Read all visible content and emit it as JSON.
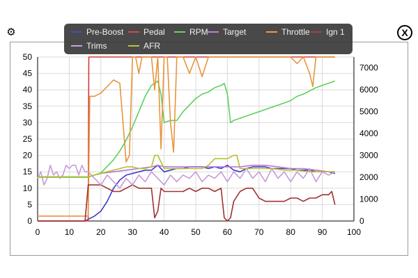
{
  "controls": {
    "settings_icon": "gear-icon",
    "settings_glyph": "⚙",
    "close_icon": "close-icon",
    "close_glyph": "X"
  },
  "chart_data": {
    "type": "line",
    "title": "",
    "xlabel": "",
    "ylabel": "",
    "xlim": [
      0,
      100
    ],
    "ylim_left": [
      0,
      50
    ],
    "ylim_right": [
      0,
      7500
    ],
    "x_ticks": [
      "0",
      "10",
      "20",
      "30",
      "40",
      "50",
      "60",
      "70",
      "80",
      "90",
      "100"
    ],
    "y_left_ticks": [
      "0",
      "5",
      "10",
      "15",
      "20",
      "25",
      "30",
      "35",
      "40",
      "45",
      "50"
    ],
    "y_right_ticks": [
      "0",
      "1000",
      "2000",
      "3000",
      "4000",
      "5000",
      "6000",
      "7000"
    ],
    "grid": true,
    "legend_position": "top-center",
    "series": [
      {
        "name": "Pre-Boost",
        "color": "#3b3bc4",
        "axis": "left",
        "x": [
          0,
          15,
          16,
          18,
          20,
          22,
          24,
          26,
          28,
          30,
          32,
          34,
          36,
          38,
          40,
          42,
          44,
          46,
          48,
          50,
          52,
          54,
          56,
          58,
          60,
          62,
          64,
          66,
          68,
          70,
          72,
          74,
          76,
          78,
          80,
          82,
          84,
          86,
          88,
          90,
          92,
          94
        ],
        "y": [
          0,
          0,
          0.5,
          1.5,
          3,
          6,
          10,
          12.5,
          14,
          14.5,
          15,
          15.5,
          15.5,
          17,
          15,
          15.5,
          16,
          16,
          16.5,
          16.5,
          16.5,
          16,
          16.5,
          16,
          17,
          15.5,
          15,
          16,
          16.5,
          16.5,
          16.5,
          16,
          16,
          16,
          16,
          15.5,
          15.5,
          15.5,
          15,
          15,
          15,
          14.5
        ]
      },
      {
        "name": "Pedal",
        "color": "#d23a3a",
        "axis": "left",
        "x": [
          0,
          16,
          16.2,
          17,
          94
        ],
        "y": [
          0,
          0,
          50,
          50,
          50
        ]
      },
      {
        "name": "RPM",
        "color": "#5ad15a",
        "axis": "right",
        "x": [
          0,
          16,
          18,
          20,
          22,
          24,
          26,
          28,
          30,
          32,
          34,
          36,
          38,
          39,
          40,
          42,
          44,
          46,
          48,
          50,
          52,
          54,
          56,
          58,
          59,
          60,
          61,
          62,
          64,
          66,
          68,
          70,
          72,
          74,
          76,
          78,
          80,
          82,
          84,
          86,
          88,
          90,
          92,
          94
        ],
        "y": [
          2000,
          2000,
          2100,
          2200,
          2500,
          2800,
          3200,
          3700,
          4300,
          5000,
          5700,
          6200,
          6400,
          5800,
          4500,
          4600,
          4600,
          5000,
          5300,
          5600,
          5800,
          5900,
          6100,
          6200,
          6300,
          5800,
          4500,
          4600,
          4700,
          4800,
          4900,
          5000,
          5100,
          5200,
          5300,
          5400,
          5500,
          5700,
          5800,
          5950,
          6100,
          6200,
          6300,
          6400
        ]
      },
      {
        "name": "Target",
        "color": "#b774d8",
        "axis": "left",
        "x": [
          0,
          16,
          18,
          20,
          24,
          28,
          32,
          36,
          38,
          40,
          44,
          48,
          52,
          56,
          60,
          64,
          68,
          72,
          76,
          80,
          84,
          88,
          92,
          94
        ],
        "y": [
          13.5,
          13.5,
          14,
          14.5,
          15,
          15.5,
          16,
          16.5,
          17,
          16.5,
          16.5,
          16.5,
          16.5,
          16.5,
          16.5,
          16.5,
          17,
          17,
          16.5,
          16,
          16,
          15.5,
          15,
          15
        ]
      },
      {
        "name": "Throttle",
        "color": "#e8943c",
        "axis": "left",
        "x": [
          0,
          16,
          16.5,
          17,
          18,
          20,
          22,
          24,
          26,
          28,
          29,
          30,
          31,
          32,
          33,
          34,
          36,
          37,
          38,
          39,
          40,
          41,
          42,
          43,
          44,
          45,
          46,
          48,
          50,
          52,
          54,
          56,
          60,
          70,
          80,
          82,
          84,
          86,
          87,
          88,
          94
        ],
        "y": [
          1.5,
          1.5,
          38,
          38,
          38,
          39,
          41,
          43,
          42,
          18,
          20,
          50,
          50,
          45,
          50,
          50,
          50,
          40,
          50,
          22,
          50,
          50,
          30,
          21,
          50,
          50,
          50,
          45,
          50,
          44,
          50,
          50,
          50,
          50,
          50,
          48,
          50,
          45,
          41,
          50,
          50
        ]
      },
      {
        "name": "Ign 1",
        "color": "#a03030",
        "axis": "left",
        "x": [
          0,
          15,
          16,
          18,
          20,
          22,
          24,
          26,
          28,
          30,
          32,
          34,
          36,
          37,
          38,
          39,
          40,
          42,
          44,
          46,
          48,
          50,
          52,
          54,
          56,
          58,
          59,
          60,
          61,
          62,
          64,
          66,
          68,
          70,
          72,
          74,
          76,
          78,
          80,
          82,
          84,
          86,
          88,
          90,
          92,
          93,
          94
        ],
        "y": [
          0,
          0,
          11,
          11,
          11,
          10,
          9,
          9,
          10,
          11,
          10,
          10,
          10,
          1,
          3,
          10,
          9,
          9,
          9,
          9,
          10,
          9,
          10,
          10,
          9,
          10,
          1,
          0,
          1,
          6,
          9,
          10,
          10,
          7,
          6,
          6,
          6,
          6,
          7,
          7,
          6,
          7,
          7,
          8,
          8,
          9,
          5
        ]
      },
      {
        "name": "Trims",
        "color": "#c79ad8",
        "axis": "left",
        "x": [
          0,
          1,
          2,
          3,
          4,
          5,
          6,
          7,
          8,
          9,
          10,
          11,
          12,
          13,
          14,
          15,
          16,
          18,
          20,
          22,
          24,
          26,
          28,
          30,
          32,
          34,
          36,
          38,
          40,
          42,
          44,
          46,
          48,
          50,
          52,
          54,
          56,
          58,
          60,
          62,
          64,
          66,
          68,
          70,
          72,
          74,
          76,
          78,
          80,
          82,
          84,
          86,
          88,
          90,
          92,
          94
        ],
        "y": [
          13,
          15,
          11,
          13,
          17,
          14,
          15,
          13,
          14,
          17,
          16,
          17,
          17,
          14,
          17,
          15,
          15,
          13,
          11,
          14,
          12,
          10,
          13,
          11,
          14,
          12,
          15,
          13,
          11,
          14,
          12,
          14,
          13,
          15,
          12,
          14,
          13,
          15,
          12,
          15,
          13,
          16,
          13,
          15,
          12,
          16,
          13,
          15,
          12,
          15,
          13,
          16,
          12,
          15,
          14,
          15
        ]
      },
      {
        "name": "AFR",
        "color": "#b6c02a",
        "axis": "left",
        "x": [
          0,
          15,
          16,
          18,
          20,
          22,
          24,
          26,
          28,
          30,
          32,
          34,
          36,
          37,
          38,
          40,
          42,
          44,
          46,
          48,
          50,
          52,
          54,
          56,
          58,
          60,
          62,
          63,
          64,
          66,
          68,
          70,
          74,
          78,
          82,
          86,
          90,
          94
        ],
        "y": [
          13.5,
          13.5,
          13.5,
          14,
          14.5,
          15,
          15.5,
          16,
          16.5,
          16.5,
          16,
          16,
          16.5,
          20,
          20,
          16,
          16,
          16,
          16,
          16,
          16,
          16,
          17,
          19,
          19,
          19,
          20,
          20,
          16,
          16,
          16,
          16,
          16,
          15.5,
          15.5,
          15,
          15,
          15
        ]
      }
    ]
  }
}
